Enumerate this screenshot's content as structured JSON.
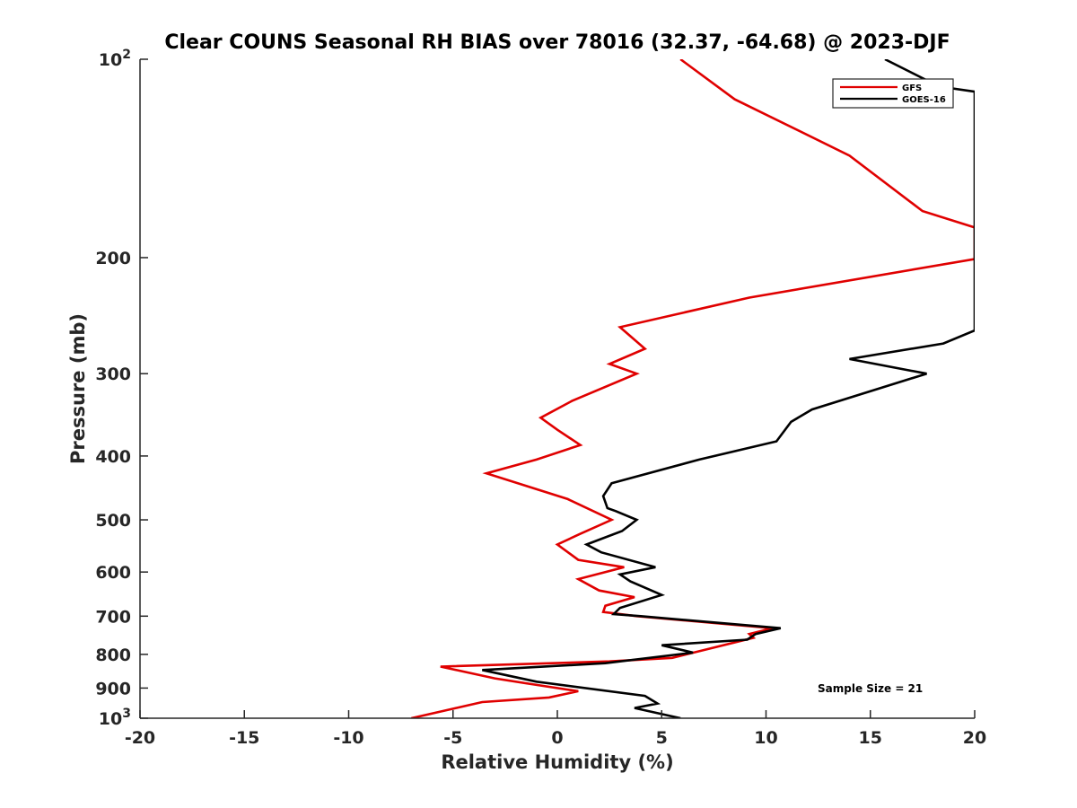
{
  "chart_data": {
    "type": "line",
    "title": "Clear COUNS Seasonal RH BIAS over 78016 (32.37, -64.68) @ 2023-DJF",
    "xlabel": "Relative Humidity (%)",
    "ylabel": "Pressure (mb)",
    "xlim": [
      -20,
      20
    ],
    "ylim": [
      100,
      1000
    ],
    "y_scale": "log",
    "y_reversed": true,
    "grid": false,
    "legend_position": "top-right",
    "x_ticks": [
      "-20",
      "-15",
      "-10",
      "-5",
      "0",
      "5",
      "10",
      "15",
      "20"
    ],
    "y_ticks": [
      {
        "value": 100,
        "base": "10",
        "exp": "2"
      },
      {
        "value": 200,
        "label": "200"
      },
      {
        "value": 300,
        "label": "300"
      },
      {
        "value": 400,
        "label": "400"
      },
      {
        "value": 500,
        "label": "500"
      },
      {
        "value": 600,
        "label": "600"
      },
      {
        "value": 700,
        "label": "700"
      },
      {
        "value": 800,
        "label": "800"
      },
      {
        "value": 900,
        "label": "900"
      },
      {
        "value": 1000,
        "base": "10",
        "exp": "3"
      }
    ],
    "annotation": "Sample Size = 21",
    "series": [
      {
        "name": "GFS",
        "color": "#e00000",
        "points": [
          [
            5.9,
            100
          ],
          [
            8.5,
            115
          ],
          [
            14,
            140
          ],
          [
            17.5,
            170
          ],
          [
            20,
            180
          ],
          [
            20,
            201
          ],
          [
            9.2,
            230
          ],
          [
            3,
            255
          ],
          [
            4.2,
            275
          ],
          [
            2.5,
            290
          ],
          [
            3.8,
            300
          ],
          [
            0.7,
            330
          ],
          [
            -0.8,
            350
          ],
          [
            0,
            365
          ],
          [
            1.1,
            385
          ],
          [
            -1,
            405
          ],
          [
            -3.4,
            425
          ],
          [
            0.5,
            465
          ],
          [
            2.6,
            500
          ],
          [
            1.1,
            525
          ],
          [
            0,
            545
          ],
          [
            1,
            575
          ],
          [
            3.2,
            590
          ],
          [
            1,
            615
          ],
          [
            2,
            640
          ],
          [
            3.7,
            655
          ],
          [
            2.3,
            675
          ],
          [
            2.2,
            690
          ],
          [
            3.8,
            700
          ],
          [
            10.3,
            730
          ],
          [
            9.2,
            745
          ],
          [
            9.4,
            755
          ],
          [
            5.5,
            810
          ],
          [
            2.5,
            820
          ],
          [
            -5.6,
            835
          ],
          [
            -3,
            870
          ],
          [
            -1,
            890
          ],
          [
            1,
            910
          ],
          [
            -0.4,
            930
          ],
          [
            -3.6,
            945
          ],
          [
            -7,
            1000
          ]
        ]
      },
      {
        "name": "GOES-16",
        "color": "#000000",
        "points": [
          [
            15.7,
            100
          ],
          [
            18.3,
            110
          ],
          [
            20,
            112
          ],
          [
            20,
            258
          ],
          [
            18.5,
            270
          ],
          [
            14,
            285
          ],
          [
            17.7,
            300
          ],
          [
            12.2,
            340
          ],
          [
            11.2,
            355
          ],
          [
            10.5,
            380
          ],
          [
            6.8,
            405
          ],
          [
            2.6,
            440
          ],
          [
            2.2,
            460
          ],
          [
            2.4,
            480
          ],
          [
            2.8,
            485
          ],
          [
            3.8,
            500
          ],
          [
            3.1,
            520
          ],
          [
            1.4,
            545
          ],
          [
            2.1,
            560
          ],
          [
            4.7,
            590
          ],
          [
            3,
            605
          ],
          [
            3.5,
            620
          ],
          [
            5,
            650
          ],
          [
            3,
            680
          ],
          [
            2.7,
            695
          ],
          [
            4,
            700
          ],
          [
            10.7,
            730
          ],
          [
            9.5,
            745
          ],
          [
            9.1,
            760
          ],
          [
            5,
            775
          ],
          [
            6.5,
            795
          ],
          [
            2.3,
            825
          ],
          [
            -3.6,
            845
          ],
          [
            -1,
            880
          ],
          [
            4.2,
            925
          ],
          [
            4.8,
            950
          ],
          [
            3.7,
            965
          ],
          [
            5.9,
            1000
          ]
        ]
      }
    ]
  }
}
